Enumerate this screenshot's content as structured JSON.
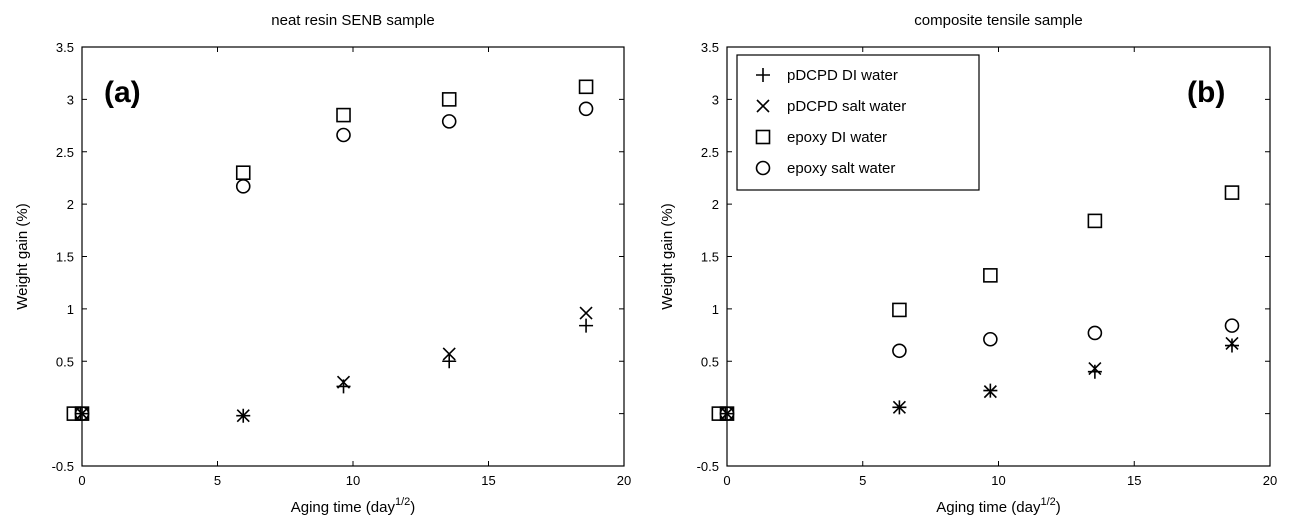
{
  "chart_data": [
    {
      "type": "scatter",
      "title": "neat resin SENB sample",
      "panel_label": "(a)",
      "xlabel": "Aging time (day",
      "xlabel_sup": "1/2",
      "xlabel_end": ")",
      "ylabel": "Weight gain (%)",
      "xlim": [
        0,
        20
      ],
      "ylim": [
        -0.5,
        3.5
      ],
      "xticks": [
        "0",
        "5",
        "10",
        "15",
        "20"
      ],
      "yticks": [
        "-0.5",
        "0.5",
        "1",
        "1.5",
        "2",
        "2.5",
        "3",
        "3.5"
      ],
      "grid": false,
      "series": [
        {
          "name": "pDCPD DI water",
          "marker": "plus",
          "x": [
            0,
            5.95,
            9.65,
            13.55,
            18.6
          ],
          "y": [
            0,
            -0.02,
            0.26,
            0.5,
            0.84
          ]
        },
        {
          "name": "pDCPD salt water",
          "marker": "x",
          "x": [
            0,
            5.95,
            9.65,
            13.55,
            18.6
          ],
          "y": [
            0,
            -0.02,
            0.3,
            0.57,
            0.96
          ]
        },
        {
          "name": "epoxy DI water",
          "marker": "square",
          "x": [
            -0.3,
            0,
            5.95,
            9.65,
            13.55,
            18.6
          ],
          "y": [
            0,
            0,
            2.3,
            2.85,
            3.0,
            3.12
          ]
        },
        {
          "name": "epoxy salt water",
          "marker": "circle",
          "x": [
            0,
            5.95,
            9.65,
            13.55,
            18.6
          ],
          "y": [
            0,
            2.17,
            2.66,
            2.79,
            2.91
          ]
        }
      ]
    },
    {
      "type": "scatter",
      "title": "composite tensile sample",
      "panel_label": "(b)",
      "xlabel": "Aging time (day",
      "xlabel_sup": "1/2",
      "xlabel_end": ")",
      "ylabel": "Weight gain (%)",
      "xlim": [
        0,
        20
      ],
      "ylim": [
        -0.5,
        3.5
      ],
      "xticks": [
        "0",
        "5",
        "10",
        "15",
        "20"
      ],
      "yticks": [
        "-0.5",
        "0.5",
        "1",
        "1.5",
        "2",
        "2.5",
        "3",
        "3.5"
      ],
      "grid": false,
      "legend": "top-left",
      "series": [
        {
          "name": "pDCPD DI water",
          "marker": "plus",
          "x": [
            0,
            6.35,
            9.7,
            13.55,
            18.6
          ],
          "y": [
            0,
            0.06,
            0.22,
            0.4,
            0.65
          ]
        },
        {
          "name": "pDCPD salt water",
          "marker": "x",
          "x": [
            0,
            6.35,
            9.7,
            13.55,
            18.6
          ],
          "y": [
            0,
            0.06,
            0.21,
            0.43,
            0.67
          ]
        },
        {
          "name": "epoxy DI water",
          "marker": "square",
          "x": [
            -0.3,
            0,
            6.35,
            9.7,
            13.55,
            18.6
          ],
          "y": [
            0,
            0,
            0.99,
            1.32,
            1.84,
            2.11
          ]
        },
        {
          "name": "epoxy salt water",
          "marker": "circle",
          "x": [
            0,
            6.35,
            9.7,
            13.55,
            18.6
          ],
          "y": [
            0,
            0.6,
            0.71,
            0.77,
            0.84
          ]
        }
      ]
    }
  ]
}
